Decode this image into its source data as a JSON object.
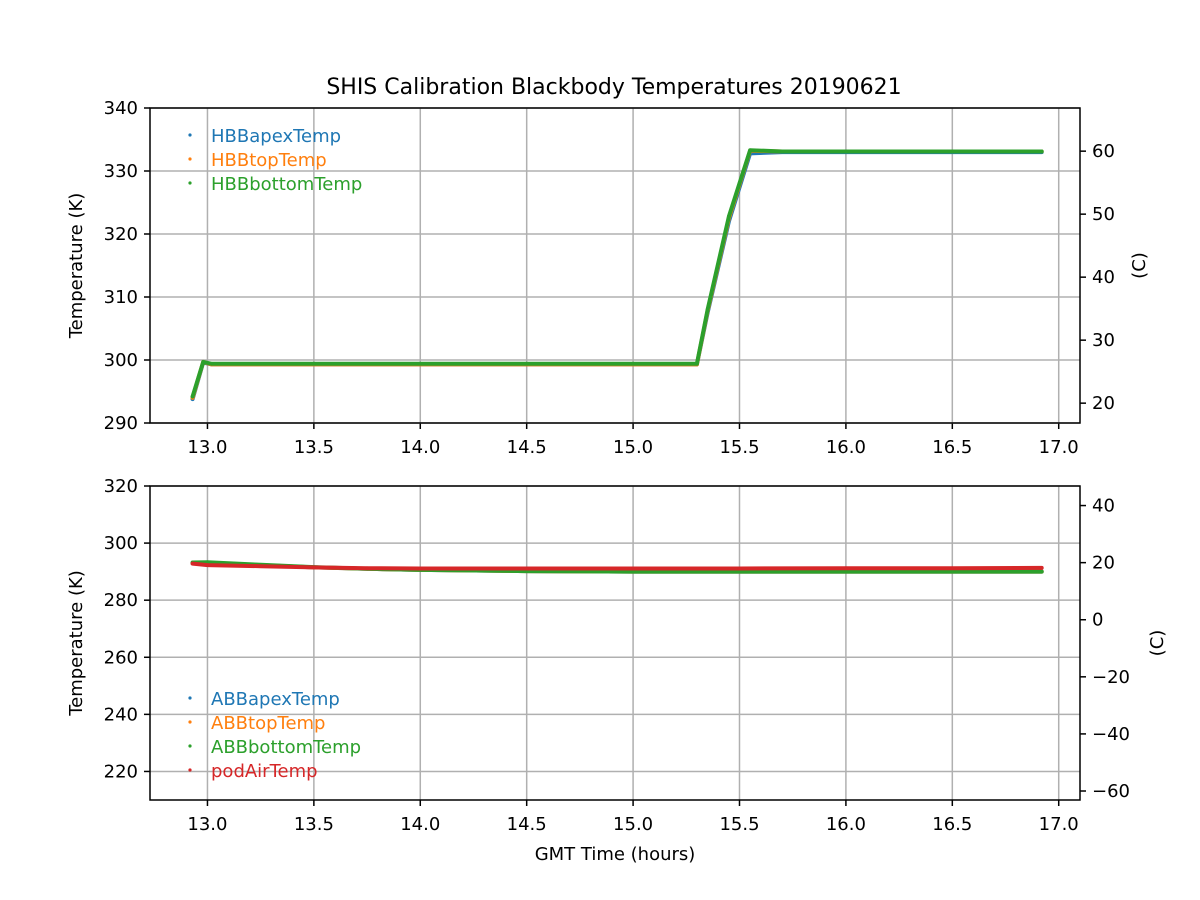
{
  "figure_title": "SHIS Calibration Blackbody Temperatures 20190621",
  "chart_data": [
    {
      "type": "scatter",
      "title": "SHIS Calibration Blackbody Temperatures 20190621",
      "xlabel": "",
      "ylabel": "Temperature (K)",
      "ylabel_right": "(C)",
      "xlim": [
        12.73,
        17.1
      ],
      "ylim": [
        290,
        340
      ],
      "xticks": [
        "13.0",
        "13.5",
        "14.0",
        "14.5",
        "15.0",
        "15.5",
        "16.0",
        "16.5",
        "17.0"
      ],
      "yticks": [
        "290",
        "300",
        "310",
        "320",
        "330",
        "340"
      ],
      "yticks_right": [
        "20",
        "30",
        "40",
        "50",
        "60"
      ],
      "grid": true,
      "legend_position": "top-left",
      "series": [
        {
          "name": "HBBapexTemp",
          "color": "#1f77b4",
          "x": [
            12.93,
            12.98,
            13.02,
            13.5,
            14.0,
            14.5,
            15.0,
            15.3,
            15.35,
            15.45,
            15.55,
            15.7,
            16.0,
            16.5,
            16.92
          ],
          "y": [
            293.8,
            299.6,
            299.3,
            299.3,
            299.3,
            299.3,
            299.3,
            299.3,
            307.5,
            322.0,
            332.8,
            333.0,
            333.0,
            333.0,
            333.0
          ]
        },
        {
          "name": "HBBtopTemp",
          "color": "#ff7f0e",
          "x": [
            12.93,
            12.98,
            13.02,
            13.5,
            14.0,
            14.5,
            15.0,
            15.3,
            15.35,
            15.45,
            15.55,
            15.7,
            16.0,
            16.5,
            16.92
          ],
          "y": [
            294.0,
            299.7,
            299.3,
            299.3,
            299.3,
            299.3,
            299.3,
            299.3,
            307.8,
            322.5,
            333.2,
            333.1,
            333.1,
            333.1,
            333.1
          ]
        },
        {
          "name": "HBBbottomTemp",
          "color": "#2ca02c",
          "x": [
            12.93,
            12.98,
            13.02,
            13.5,
            14.0,
            14.5,
            15.0,
            15.3,
            15.35,
            15.45,
            15.55,
            15.7,
            16.0,
            16.5,
            16.92
          ],
          "y": [
            294.2,
            299.7,
            299.4,
            299.4,
            299.4,
            299.4,
            299.4,
            299.4,
            308.0,
            322.8,
            333.3,
            333.1,
            333.1,
            333.1,
            333.1
          ]
        }
      ]
    },
    {
      "type": "scatter",
      "title": "",
      "xlabel": "GMT Time (hours)",
      "ylabel": "Temperature (K)",
      "ylabel_right": "(C)",
      "xlim": [
        12.73,
        17.1
      ],
      "ylim": [
        210,
        320
      ],
      "xticks": [
        "13.0",
        "13.5",
        "14.0",
        "14.5",
        "15.0",
        "15.5",
        "16.0",
        "16.5",
        "17.0"
      ],
      "yticks": [
        "220",
        "240",
        "260",
        "280",
        "300",
        "320"
      ],
      "yticks_right": [
        "−60",
        "−40",
        "−20",
        "0",
        "20",
        "40"
      ],
      "grid": true,
      "legend_position": "lower-left",
      "series": [
        {
          "name": "ABBapexTemp",
          "color": "#1f77b4",
          "x": [
            12.93,
            13.0,
            13.25,
            13.5,
            13.75,
            14.0,
            14.5,
            15.0,
            15.5,
            16.0,
            16.5,
            16.92
          ],
          "y": [
            293.0,
            293.1,
            292.3,
            291.5,
            291.0,
            290.6,
            290.2,
            290.0,
            290.0,
            290.0,
            290.0,
            290.0
          ]
        },
        {
          "name": "ABBtopTemp",
          "color": "#ff7f0e",
          "x": [
            12.93,
            13.0,
            13.25,
            13.5,
            13.75,
            14.0,
            14.5,
            15.0,
            15.5,
            16.0,
            16.5,
            16.92
          ],
          "y": [
            293.0,
            293.1,
            292.3,
            291.5,
            291.0,
            290.6,
            290.2,
            290.0,
            290.0,
            290.0,
            290.0,
            290.0
          ]
        },
        {
          "name": "ABBbottomTemp",
          "color": "#2ca02c",
          "x": [
            12.93,
            13.0,
            13.25,
            13.5,
            13.75,
            14.0,
            14.5,
            15.0,
            15.5,
            16.0,
            16.5,
            16.92
          ],
          "y": [
            293.2,
            293.3,
            292.4,
            291.6,
            291.0,
            290.6,
            290.2,
            290.0,
            290.0,
            290.0,
            290.0,
            290.0
          ]
        },
        {
          "name": "podAirTemp",
          "color": "#d62728",
          "x": [
            12.93,
            13.0,
            13.25,
            13.5,
            13.75,
            14.0,
            14.5,
            15.0,
            15.5,
            16.0,
            16.5,
            16.92
          ],
          "y": [
            292.8,
            292.3,
            291.9,
            291.5,
            291.2,
            291.1,
            291.1,
            291.1,
            291.1,
            291.2,
            291.2,
            291.3
          ]
        }
      ]
    }
  ]
}
